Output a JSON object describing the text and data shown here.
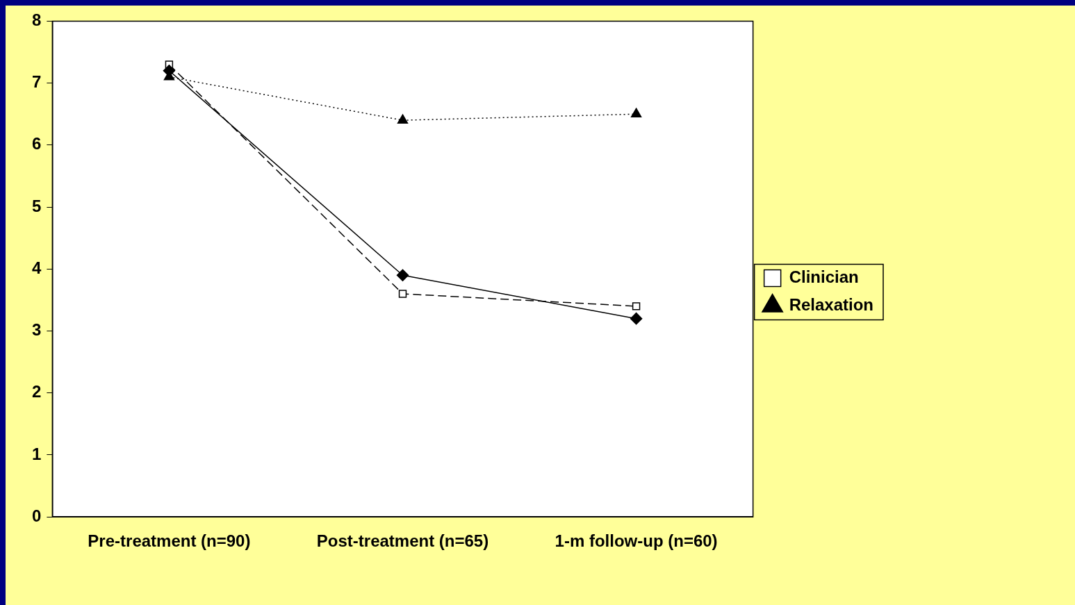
{
  "chart_data": {
    "type": "line",
    "categories": [
      "Pre-treatment (n=90)",
      "Post-treatment (n=65)",
      "1-m follow-up (n=60)"
    ],
    "series": [
      {
        "color": "#000000",
        "values": [
          7.2,
          3.9,
          3.2
        ],
        "marker": "diamond",
        "line_style": "solid"
      },
      {
        "name": "Clinician",
        "color": "#000000",
        "values": [
          7.3,
          3.6,
          3.4
        ],
        "marker": "square",
        "line_style": "dashed"
      },
      {
        "name": "Relaxation",
        "color": "#000000",
        "values": [
          7.1,
          6.4,
          6.5
        ],
        "marker": "triangle",
        "line_style": "dotted"
      }
    ],
    "ylim": [
      0,
      8
    ],
    "yticks": [
      0,
      1,
      2,
      3,
      4,
      5,
      6,
      7,
      8
    ],
    "grid": false,
    "legend": "right"
  }
}
